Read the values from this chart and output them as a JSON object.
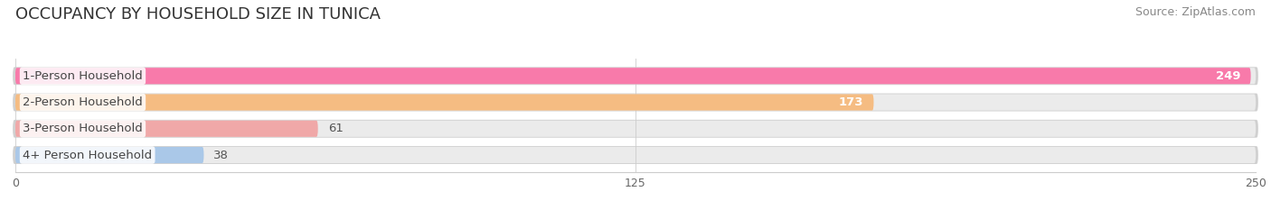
{
  "title": "OCCUPANCY BY HOUSEHOLD SIZE IN TUNICA",
  "source": "Source: ZipAtlas.com",
  "categories": [
    "1-Person Household",
    "2-Person Household",
    "3-Person Household",
    "4+ Person Household"
  ],
  "values": [
    249,
    173,
    61,
    38
  ],
  "bar_colors": [
    "#f87aaa",
    "#f5bc82",
    "#f0a8a8",
    "#aac8e8"
  ],
  "bar_bg_color": "#ebebeb",
  "bar_border_color": "#d8d8d8",
  "xlim": [
    0,
    250
  ],
  "xticks": [
    0,
    125,
    250
  ],
  "title_fontsize": 13,
  "source_fontsize": 9,
  "label_fontsize": 9.5,
  "value_fontsize": 9.5,
  "bar_height": 0.62,
  "background_color": "#ffffff"
}
